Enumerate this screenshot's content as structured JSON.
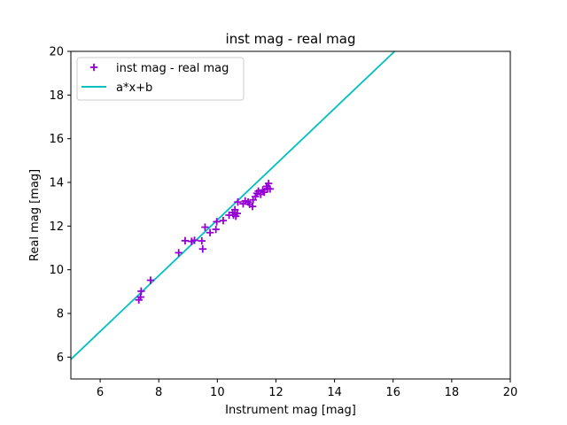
{
  "chart_data": {
    "type": "scatter",
    "title": "inst mag - real mag",
    "xlabel": "Instrument mag [mag]",
    "ylabel": "Real mag [mag]",
    "xlim": [
      5,
      20
    ],
    "ylim": [
      5,
      20
    ],
    "xticks": [
      6,
      8,
      10,
      12,
      14,
      16,
      18,
      20
    ],
    "yticks": [
      6,
      8,
      10,
      12,
      14,
      16,
      18,
      20
    ],
    "grid": false,
    "legend_position": "top-left",
    "series": [
      {
        "name": "inst mag - real mag",
        "kind": "scatter",
        "marker": "plus",
        "color": "#9400d3",
        "points": [
          [
            7.32,
            8.62
          ],
          [
            7.38,
            8.75
          ],
          [
            7.4,
            9.02
          ],
          [
            7.72,
            9.52
          ],
          [
            8.68,
            10.78
          ],
          [
            8.9,
            11.33
          ],
          [
            9.12,
            11.3
          ],
          [
            9.22,
            11.35
          ],
          [
            9.47,
            11.32
          ],
          [
            9.5,
            10.95
          ],
          [
            9.58,
            11.95
          ],
          [
            9.75,
            11.7
          ],
          [
            9.95,
            11.85
          ],
          [
            9.98,
            12.2
          ],
          [
            10.2,
            12.25
          ],
          [
            10.4,
            12.5
          ],
          [
            10.52,
            12.62
          ],
          [
            10.55,
            12.5
          ],
          [
            10.6,
            12.75
          ],
          [
            10.63,
            12.45
          ],
          [
            10.68,
            12.58
          ],
          [
            10.7,
            13.1
          ],
          [
            10.88,
            13.02
          ],
          [
            10.95,
            13.15
          ],
          [
            11.05,
            13.1
          ],
          [
            11.1,
            13.0
          ],
          [
            11.2,
            12.9
          ],
          [
            11.22,
            13.2
          ],
          [
            11.3,
            13.35
          ],
          [
            11.35,
            13.5
          ],
          [
            11.4,
            13.6
          ],
          [
            11.48,
            13.45
          ],
          [
            11.55,
            13.65
          ],
          [
            11.6,
            13.55
          ],
          [
            11.68,
            13.82
          ],
          [
            11.72,
            13.72
          ],
          [
            11.75,
            13.95
          ],
          [
            11.8,
            13.7
          ]
        ]
      },
      {
        "name": "a*x+b",
        "kind": "line",
        "color": "#00bfbf",
        "points": [
          [
            5.0,
            5.9
          ],
          [
            16.05,
            20.0
          ]
        ]
      }
    ]
  }
}
